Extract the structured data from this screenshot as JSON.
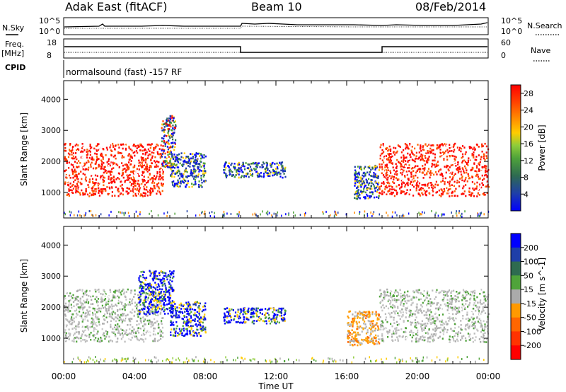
{
  "header": {
    "station": "Adak East (fitACF)",
    "beam": "Beam 10",
    "date": "08/Feb/2014"
  },
  "status_panels": {
    "nsky_label": "N.Sky",
    "nsearch_label": "N.Search",
    "noise_ticks": [
      "10^5",
      "10^0"
    ],
    "freq_label_line1": "Freq.",
    "freq_label_line2": "[MHz]",
    "freq_ticks": [
      "18",
      "8"
    ],
    "nave_label": "Nave",
    "nave_ticks": [
      "60",
      "0"
    ],
    "cpid_label": "CPID",
    "cpid_text": "normalsound (fast) -157 RF"
  },
  "chart_data": [
    {
      "type": "heatmap",
      "title": "",
      "quantity": "Power",
      "xlabel": "",
      "ylabel": "Slant Range [km]",
      "x_ticks": [
        "00:00",
        "04:00",
        "08:00",
        "12:00",
        "16:00",
        "20:00",
        "00:00"
      ],
      "y_ticks": [
        "1000",
        "2000",
        "3000",
        "4000"
      ],
      "xlim": [
        0,
        24
      ],
      "ylim": [
        180,
        4600
      ],
      "colorbar": {
        "label": "Power [dB]",
        "ticks": [
          "4",
          "8",
          "12",
          "16",
          "20",
          "24",
          "28"
        ],
        "range": [
          0,
          30
        ],
        "colors": [
          "#0000ff",
          "#1f3fa8",
          "#2e6b50",
          "#4fa33a",
          "#8fcc3a",
          "#ffcc00",
          "#ff8800",
          "#ff4400",
          "#ff0000"
        ]
      },
      "echo_regions": [
        {
          "t_start": 0.0,
          "t_end": 5.6,
          "range_low": 900,
          "range_high": 2600,
          "level": "high"
        },
        {
          "t_start": 5.5,
          "t_end": 6.3,
          "range_low": 1800,
          "range_high": 3500,
          "level": "mixed"
        },
        {
          "t_start": 6.0,
          "t_end": 8.0,
          "range_low": 1200,
          "range_high": 2300,
          "level": "low"
        },
        {
          "t_start": 9.0,
          "t_end": 12.5,
          "range_low": 1500,
          "range_high": 2000,
          "level": "low"
        },
        {
          "t_start": 16.4,
          "t_end": 17.8,
          "range_low": 800,
          "range_high": 1900,
          "level": "low"
        },
        {
          "t_start": 17.8,
          "t_end": 24.0,
          "range_low": 900,
          "range_high": 2600,
          "level": "high"
        }
      ]
    },
    {
      "type": "heatmap",
      "title": "",
      "quantity": "Velocity",
      "xlabel": "Time UT",
      "ylabel": "Slant Range [km]",
      "x_ticks": [
        "00:00",
        "04:00",
        "08:00",
        "12:00",
        "16:00",
        "20:00",
        "00:00"
      ],
      "y_ticks": [
        "1000",
        "2000",
        "3000",
        "4000"
      ],
      "xlim": [
        0,
        24
      ],
      "ylim": [
        180,
        4600
      ],
      "colorbar": {
        "label": "Velocity [m s^-1]",
        "ticks": [
          "200",
          "100",
          "50",
          "15",
          "-15",
          "-50",
          "-100",
          "-200"
        ],
        "range": [
          -250,
          250
        ],
        "colors": [
          "#0000ff",
          "#1f3fa8",
          "#2e6b50",
          "#4fa33a",
          "#aaaaaa",
          "#ff9900",
          "#ff6600",
          "#ff3300",
          "#ff0000"
        ]
      },
      "echo_regions": [
        {
          "t_start": 0.0,
          "t_end": 5.6,
          "range_low": 900,
          "range_high": 2600,
          "level": "neutral"
        },
        {
          "t_start": 4.2,
          "t_end": 6.2,
          "range_low": 1800,
          "range_high": 3200,
          "level": "positive"
        },
        {
          "t_start": 6.0,
          "t_end": 8.0,
          "range_low": 1100,
          "range_high": 2200,
          "level": "positive"
        },
        {
          "t_start": 9.0,
          "t_end": 12.5,
          "range_low": 1500,
          "range_high": 2000,
          "level": "positive"
        },
        {
          "t_start": 16.0,
          "t_end": 17.8,
          "range_low": 800,
          "range_high": 1900,
          "level": "negative"
        },
        {
          "t_start": 17.8,
          "t_end": 24.0,
          "range_low": 900,
          "range_high": 2600,
          "level": "neutral"
        }
      ]
    }
  ],
  "colors": {
    "axis": "#000000",
    "background": "#ffffff"
  }
}
